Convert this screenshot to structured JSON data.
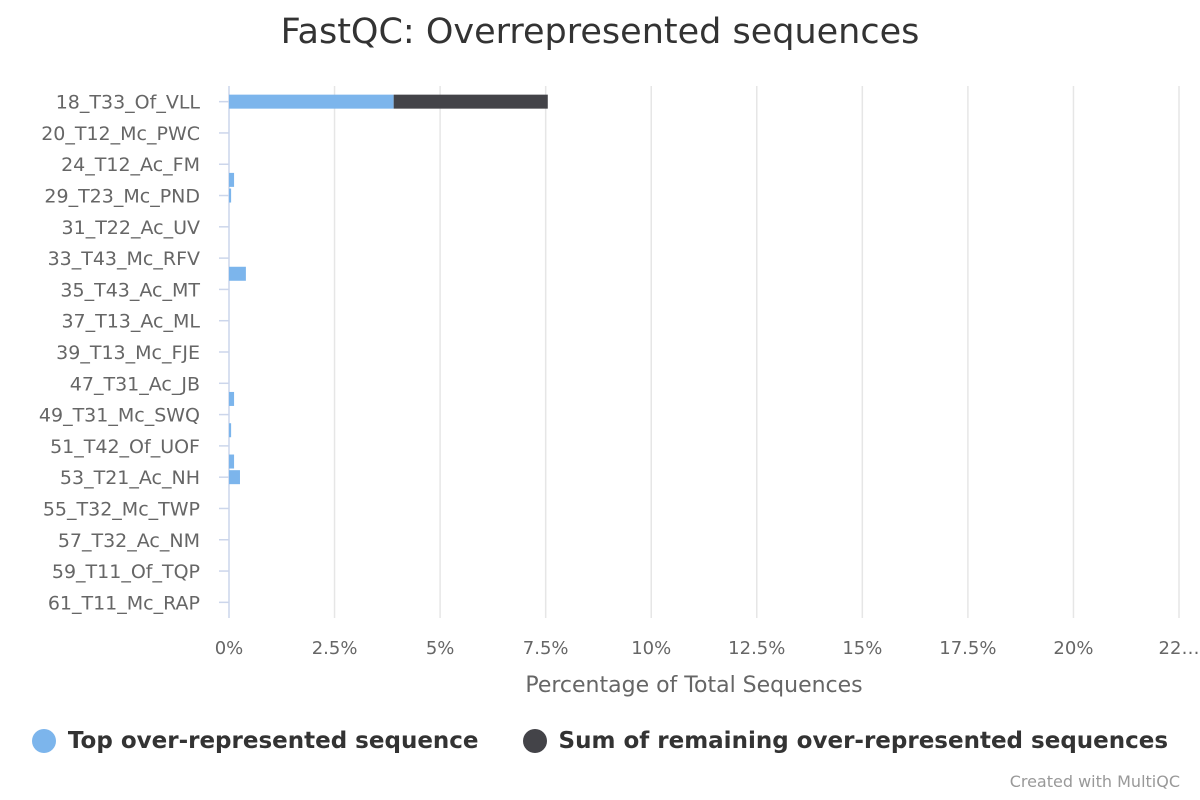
{
  "chart_data": {
    "type": "bar",
    "orientation": "horizontal",
    "stacked": true,
    "title": "FastQC: Overrepresented sequences",
    "xlabel": "Percentage of Total Sequences",
    "xlim": [
      0,
      22.5
    ],
    "xticks": [
      0,
      2.5,
      5,
      7.5,
      10,
      12.5,
      15,
      17.5,
      20,
      22.5
    ],
    "xtick_labels": [
      "0%",
      "2.5%",
      "5%",
      "7.5%",
      "10%",
      "12.5%",
      "15%",
      "17.5%",
      "20%",
      "22…"
    ],
    "grid": "vertical",
    "legend_position": "bottom",
    "rows": [
      {
        "label": "18_T33_Of_VLL",
        "offset": 0.0
      },
      {
        "label": "20_T12_Mc_PWC",
        "offset": 0.0
      },
      {
        "label": "24_T12_Ac_FM",
        "offset": 0.0
      },
      {
        "label": "29_T23_Mc_PND",
        "offset": 0.0
      },
      {
        "label": "31_T22_Ac_UV",
        "offset": 0.0
      },
      {
        "label": "33_T43_Mc_RFV",
        "offset": 0.0
      },
      {
        "label": "35_T43_Ac_MT",
        "offset": 0.0
      },
      {
        "label": "37_T13_Ac_ML",
        "offset": 0.0
      },
      {
        "label": "39_T13_Mc_FJE",
        "offset": 0.0
      },
      {
        "label": "47_T31_Ac_JB",
        "offset": 0.0
      },
      {
        "label": "49_T31_Mc_SWQ",
        "offset": 0.0
      },
      {
        "label": "51_T42_Of_UOF",
        "offset": 0.0
      },
      {
        "label": "53_T21_Ac_NH",
        "offset": 0.0
      },
      {
        "label": "55_T32_Mc_TWP",
        "offset": 0.0
      },
      {
        "label": "57_T32_Ac_NM",
        "offset": 0.0
      },
      {
        "label": "59_T11_Of_TQP",
        "offset": 0.0
      },
      {
        "label": "61_T11_Mc_RAP",
        "offset": 0.0
      }
    ],
    "bars": [
      {
        "row": 0,
        "pos": 0,
        "top": 3.9,
        "rest": 3.65
      },
      {
        "row": 2,
        "pos": 0.5,
        "top": 0.12,
        "rest": 0
      },
      {
        "row": 3,
        "pos": 0,
        "top": 0.05,
        "rest": 0
      },
      {
        "row": 5,
        "pos": 0.5,
        "top": 0.4,
        "rest": 0
      },
      {
        "row": 9,
        "pos": 0.5,
        "top": 0.12,
        "rest": 0
      },
      {
        "row": 10,
        "pos": 0.5,
        "top": 0.05,
        "rest": 0
      },
      {
        "row": 11,
        "pos": 0.5,
        "top": 0.12,
        "rest": 0
      },
      {
        "row": 12,
        "pos": 0,
        "top": 0.26,
        "rest": 0
      }
    ],
    "series": [
      {
        "name": "Top over-represented sequence",
        "color": "#7cb5ec"
      },
      {
        "name": "Sum of remaining over-represented sequences",
        "color": "#434348"
      }
    ]
  },
  "legend": {
    "items": [
      {
        "label": "Top over-represented sequence",
        "color": "#7cb5ec"
      },
      {
        "label": "Sum of remaining over-represented sequences",
        "color": "#434348"
      }
    ]
  },
  "credit": "Created with MultiQC"
}
